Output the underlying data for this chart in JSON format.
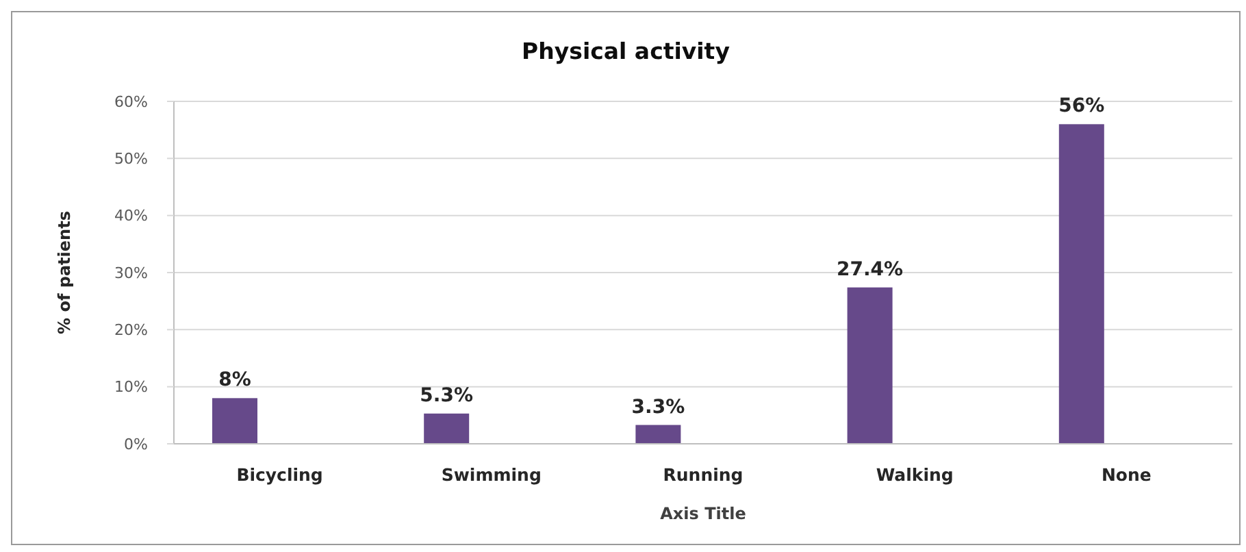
{
  "chart_data": {
    "type": "bar",
    "title": "Physical activity",
    "xlabel": "Axis Title",
    "ylabel": "% of patients",
    "categories": [
      "Bicycling",
      "Swimming",
      "Running",
      "Walking",
      "None"
    ],
    "values": [
      8,
      5.3,
      3.3,
      27.4,
      56
    ],
    "color": "#66498a",
    "value_labels": [
      "8%",
      "5.3%",
      "3.3%",
      "27.4%",
      "56%"
    ],
    "ylim": [
      0,
      60
    ],
    "yticks": [
      {
        "value": 0,
        "label": "0%"
      },
      {
        "value": 10,
        "label": "10%"
      },
      {
        "value": 20,
        "label": "20%"
      },
      {
        "value": 30,
        "label": "30%"
      },
      {
        "value": 40,
        "label": "40%"
      },
      {
        "value": 50,
        "label": "50%"
      },
      {
        "value": 60,
        "label": "60%"
      }
    ],
    "grid": "y"
  }
}
